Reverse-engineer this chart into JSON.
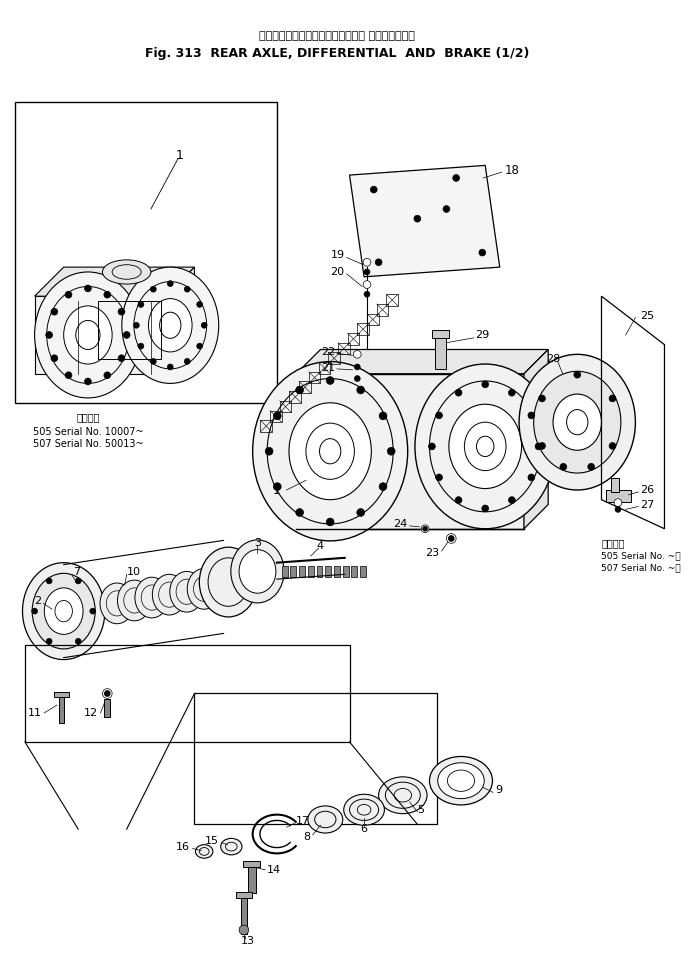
{
  "title_japanese": "リヤーアクスル、デファレンシャル およびブレーキ",
  "title_english": "Fig. 313  REAR AXLE, DIFFERENTIAL  AND  BRAKE (1/2)",
  "background_color": "#ffffff",
  "line_color": "#000000",
  "fig_width": 6.95,
  "fig_height": 9.8,
  "dpi": 100,
  "serial_note_left": [
    "適用号機",
    "505 Serial No. 10007~",
    "507 Serial No. 50013~"
  ],
  "serial_note_right": [
    "適用号機",
    "505 Serial No. ~：",
    "507 Serial No. ~："
  ]
}
